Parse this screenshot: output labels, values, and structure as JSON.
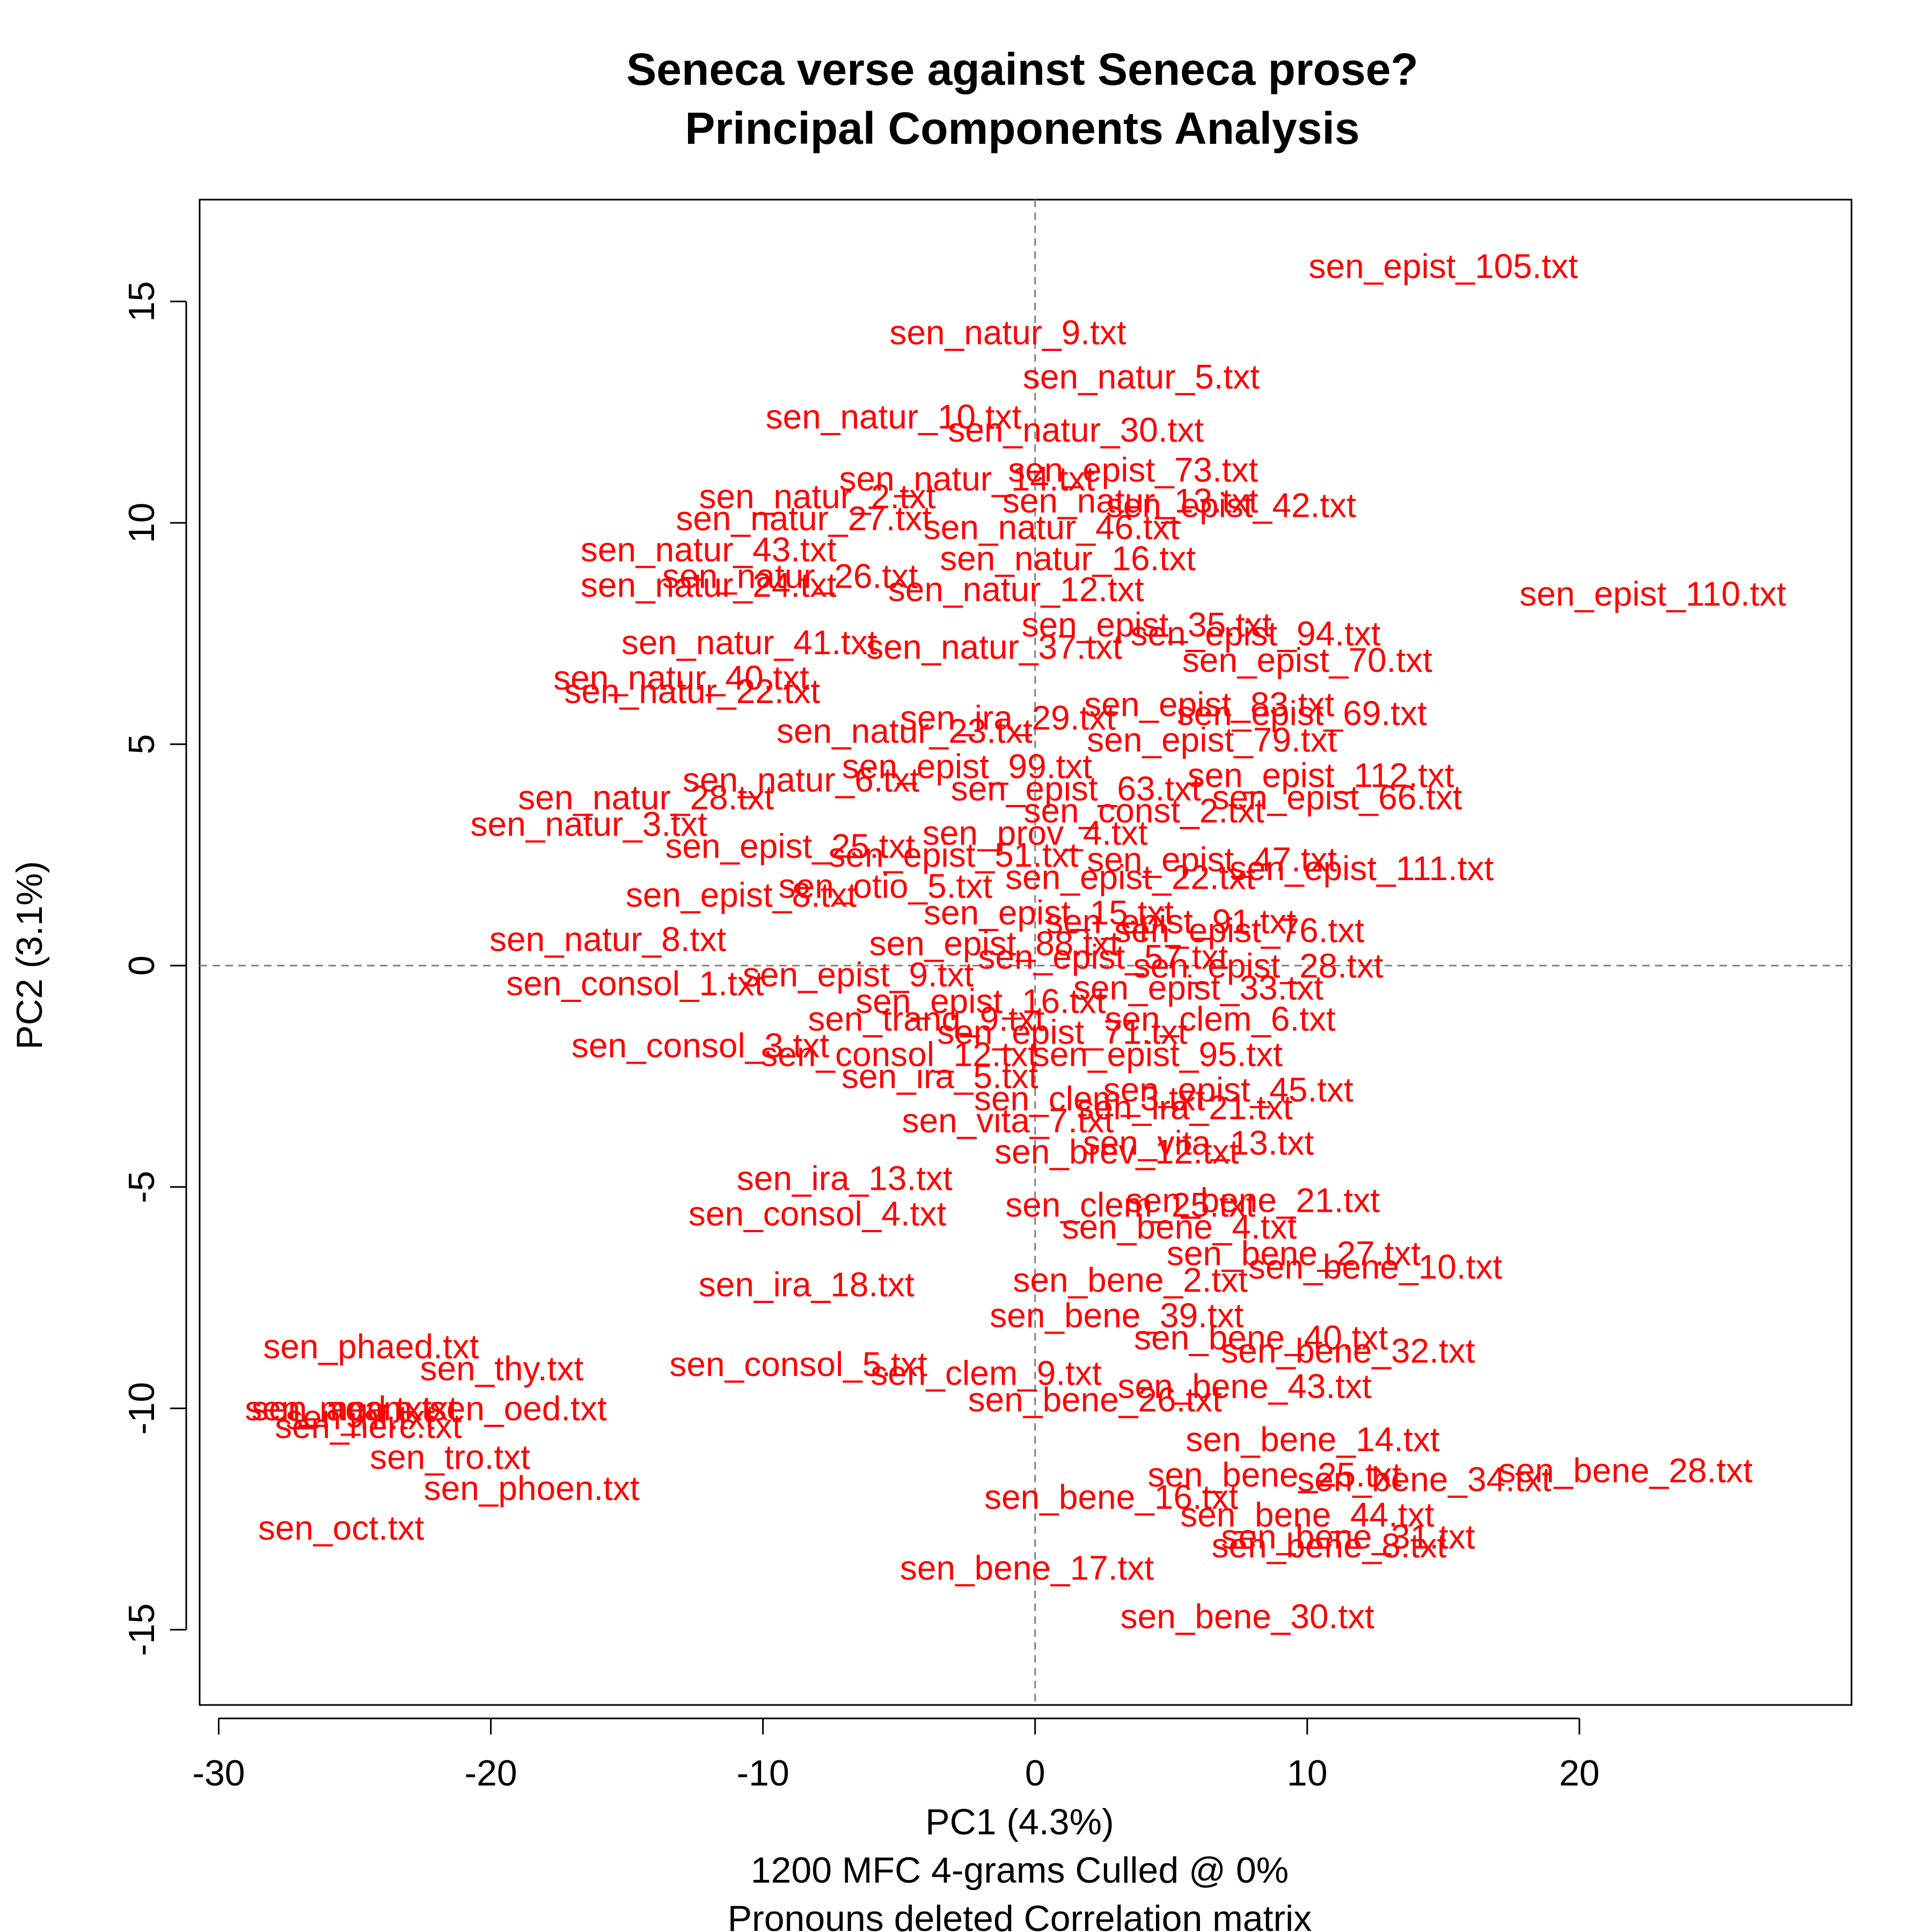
{
  "chart_data": {
    "type": "scatter",
    "title": "Seneca verse against Seneca prose?",
    "subtitle": "Principal Components Analysis",
    "xlabel": "PC1 (4.3%)",
    "ylabel": "PC2 (3.1%)",
    "caption_lines": [
      "1200 MFC 4-grams Culled @ 0%",
      "Pronouns deleted Correlation matrix"
    ],
    "xlim": [
      -30.7,
      30
    ],
    "ylim": [
      -16.7,
      17.3
    ],
    "xticks": [
      -30,
      -20,
      -10,
      0,
      10,
      20
    ],
    "yticks": [
      -15,
      -10,
      -5,
      0,
      5,
      10,
      15
    ],
    "reference_lines": {
      "x": 0,
      "y": 0
    },
    "label_color": "#ff0000",
    "points": [
      {
        "label": "sen_epist_105.txt",
        "x": 15.0,
        "y": 15.8
      },
      {
        "label": "sen_natur_9.txt",
        "x": -1.0,
        "y": 14.3
      },
      {
        "label": "sen_natur_5.txt",
        "x": 3.9,
        "y": 13.3
      },
      {
        "label": "sen_natur_10.txt",
        "x": -5.2,
        "y": 12.4
      },
      {
        "label": "sen_natur_30.txt",
        "x": 1.5,
        "y": 12.1
      },
      {
        "label": "sen_epist_73.txt",
        "x": 3.6,
        "y": 11.2
      },
      {
        "label": "sen_natur_14.txt",
        "x": -2.5,
        "y": 11.0
      },
      {
        "label": "sen_natur_2.txt",
        "x": -8.0,
        "y": 10.6
      },
      {
        "label": "sen_epist_42.txt",
        "x": 7.2,
        "y": 10.4
      },
      {
        "label": "sen_natur_13.txt",
        "x": 3.5,
        "y": 10.5
      },
      {
        "label": "sen_natur_46.txt",
        "x": 0.6,
        "y": 9.9
      },
      {
        "label": "sen_natur_27.txt",
        "x": -8.5,
        "y": 10.1
      },
      {
        "label": "sen_natur_43.txt",
        "x": -12.0,
        "y": 9.4
      },
      {
        "label": "sen_natur_16.txt",
        "x": 1.2,
        "y": 9.2
      },
      {
        "label": "sen_natur_26.txt",
        "x": -9.0,
        "y": 8.8
      },
      {
        "label": "sen_natur_24.txt",
        "x": -12.0,
        "y": 8.6
      },
      {
        "label": "sen_natur_12.txt",
        "x": -0.7,
        "y": 8.5
      },
      {
        "label": "sen_epist_110.txt",
        "x": 22.7,
        "y": 8.4
      },
      {
        "label": "sen_epist_35.txt",
        "x": 4.1,
        "y": 7.7
      },
      {
        "label": "sen_epist_94.txt",
        "x": 8.1,
        "y": 7.5
      },
      {
        "label": "sen_natur_37.txt",
        "x": -1.5,
        "y": 7.2
      },
      {
        "label": "sen_natur_41.txt",
        "x": -10.5,
        "y": 7.3
      },
      {
        "label": "sen_epist_70.txt",
        "x": 10.0,
        "y": 6.9
      },
      {
        "label": "sen_natur_40.txt",
        "x": -13.0,
        "y": 6.5
      },
      {
        "label": "sen_natur_22.txt",
        "x": -12.6,
        "y": 6.2
      },
      {
        "label": "sen_epist_83.txt",
        "x": 6.4,
        "y": 5.9
      },
      {
        "label": "sen_epist_69.txt",
        "x": 9.8,
        "y": 5.7
      },
      {
        "label": "sen_ira_29.txt",
        "x": -1.0,
        "y": 5.6
      },
      {
        "label": "sen_epist_79.txt",
        "x": 6.5,
        "y": 5.1
      },
      {
        "label": "sen_natur_23.txt",
        "x": -4.8,
        "y": 5.3
      },
      {
        "label": "sen_epist_112.txt",
        "x": 10.5,
        "y": 4.3
      },
      {
        "label": "sen_epist_66.txt",
        "x": 11.1,
        "y": 3.8
      },
      {
        "label": "sen_natur_28.txt",
        "x": -14.3,
        "y": 3.8
      },
      {
        "label": "sen_natur_3.txt",
        "x": -16.4,
        "y": 3.2
      },
      {
        "label": "sen_natur_6.txt",
        "x": -8.6,
        "y": 4.2
      },
      {
        "label": "sen_epist_111.txt",
        "x": 12.0,
        "y": 2.2
      },
      {
        "label": "sen_epist_25.txt",
        "x": -9.0,
        "y": 2.7
      },
      {
        "label": "sen_epist_8.txt",
        "x": -10.8,
        "y": 1.6
      },
      {
        "label": "sen_natur_8.txt",
        "x": -15.7,
        "y": 0.6
      },
      {
        "label": "sen_consol_1.txt",
        "x": -14.7,
        "y": -0.4
      },
      {
        "label": "sen_consol_3.txt",
        "x": -12.3,
        "y": -1.8
      },
      {
        "label": "sen_clem_6.txt",
        "x": 6.8,
        "y": -1.2
      },
      {
        "label": "sen_epist_28.txt",
        "x": 8.2,
        "y": 0.0
      },
      {
        "label": "sen_epist_45.txt",
        "x": 7.1,
        "y": -2.8
      },
      {
        "label": "sen_vita_13.txt",
        "x": 6.0,
        "y": -4.0
      },
      {
        "label": "sen_ira_13.txt",
        "x": -7.0,
        "y": -4.8
      },
      {
        "label": "sen_consol_4.txt",
        "x": -8.0,
        "y": -5.6
      },
      {
        "label": "sen_bene_21.txt",
        "x": 8.0,
        "y": -5.3
      },
      {
        "label": "sen_clem_25.txt",
        "x": 3.5,
        "y": -5.4
      },
      {
        "label": "sen_bene_4.txt",
        "x": 5.3,
        "y": -5.9
      },
      {
        "label": "sen_bene_27.txt",
        "x": 9.5,
        "y": -6.5
      },
      {
        "label": "sen_bene_10.txt",
        "x": 12.5,
        "y": -6.8
      },
      {
        "label": "sen_bene_2.txt",
        "x": 3.5,
        "y": -7.1
      },
      {
        "label": "sen_ira_18.txt",
        "x": -8.4,
        "y": -7.2
      },
      {
        "label": "sen_bene_39.txt",
        "x": 3.0,
        "y": -7.9
      },
      {
        "label": "sen_bene_40.txt",
        "x": 8.3,
        "y": -8.4
      },
      {
        "label": "sen_bene_32.txt",
        "x": 11.5,
        "y": -8.7
      },
      {
        "label": "sen_clem_9.txt",
        "x": -1.8,
        "y": -9.2
      },
      {
        "label": "sen_consol_5.txt",
        "x": -8.7,
        "y": -9.0
      },
      {
        "label": "sen_bene_43.txt",
        "x": 7.7,
        "y": -9.5
      },
      {
        "label": "sen_bene_26.txt",
        "x": 2.2,
        "y": -9.8
      },
      {
        "label": "sen_bene_14.txt",
        "x": 10.2,
        "y": -10.7
      },
      {
        "label": "sen_bene_28.txt",
        "x": 21.7,
        "y": -11.4
      },
      {
        "label": "sen_bene_34.txt",
        "x": 14.3,
        "y": -11.6
      },
      {
        "label": "sen_bene_25.txt",
        "x": 8.8,
        "y": -11.5
      },
      {
        "label": "sen_bene_16.txt",
        "x": 2.8,
        "y": -12.0
      },
      {
        "label": "sen_bene_44.txt",
        "x": 10.0,
        "y": -12.4
      },
      {
        "label": "sen_bene_31.txt",
        "x": 11.5,
        "y": -12.9
      },
      {
        "label": "sen_bene_8.txt",
        "x": 10.8,
        "y": -13.1
      },
      {
        "label": "sen_bene_17.txt",
        "x": -0.3,
        "y": -13.6
      },
      {
        "label": "sen_bene_30.txt",
        "x": 7.8,
        "y": -14.7
      },
      {
        "label": "sen_phaed.txt",
        "x": -24.4,
        "y": -8.6
      },
      {
        "label": "sen_thy.txt",
        "x": -19.6,
        "y": -9.1
      },
      {
        "label": "sen_agam.txt",
        "x": -25.0,
        "y": -10.0
      },
      {
        "label": "sen_hf.txt",
        "x": -24.8,
        "y": -10.2
      },
      {
        "label": "sen_oed.txt",
        "x": -19.0,
        "y": -10.0
      },
      {
        "label": "sen_med.txt",
        "x": -25.6,
        "y": -10.0
      },
      {
        "label": "sen_herc.txt",
        "x": -24.5,
        "y": -10.4
      },
      {
        "label": "sen_tro.txt",
        "x": -21.5,
        "y": -11.1
      },
      {
        "label": "sen_phoen.txt",
        "x": -18.5,
        "y": -11.8
      },
      {
        "label": "sen_oct.txt",
        "x": -25.5,
        "y": -12.7
      },
      {
        "label": "sen_epist_51.txt",
        "x": -3.0,
        "y": 2.5
      },
      {
        "label": "sen_epist_22.txt",
        "x": 3.5,
        "y": 2.0
      },
      {
        "label": "sen_epist_15.txt",
        "x": 0.5,
        "y": 1.2
      },
      {
        "label": "sen_epist_91.txt",
        "x": 5.0,
        "y": 1.0
      },
      {
        "label": "sen_epist_88.txt",
        "x": -1.5,
        "y": 0.5
      },
      {
        "label": "sen_epist_57.txt",
        "x": 2.5,
        "y": 0.2
      },
      {
        "label": "sen_epist_33.txt",
        "x": 6.0,
        "y": -0.5
      },
      {
        "label": "sen_epist_16.txt",
        "x": -2.0,
        "y": -0.8
      },
      {
        "label": "sen_epist_71.txt",
        "x": 1.0,
        "y": -1.5
      },
      {
        "label": "sen_epist_95.txt",
        "x": 4.5,
        "y": -2.0
      },
      {
        "label": "sen_ira_5.txt",
        "x": -3.5,
        "y": -2.5
      },
      {
        "label": "sen_clem_3.txt",
        "x": 2.0,
        "y": -3.0
      },
      {
        "label": "sen_vita_7.txt",
        "x": -1.0,
        "y": -3.5
      },
      {
        "label": "sen_brev_12.txt",
        "x": 3.0,
        "y": -4.2
      },
      {
        "label": "sen_tranq_9.txt",
        "x": -4.0,
        "y": -1.2
      },
      {
        "label": "sen_prov_4.txt",
        "x": 0.0,
        "y": 3.0
      },
      {
        "label": "sen_const_2.txt",
        "x": 4.0,
        "y": 3.5
      },
      {
        "label": "sen_otio_5.txt",
        "x": -5.5,
        "y": 1.8
      },
      {
        "label": "sen_epist_47.txt",
        "x": 6.5,
        "y": 2.4
      },
      {
        "label": "sen_epist_9.txt",
        "x": -6.5,
        "y": -0.2
      },
      {
        "label": "sen_epist_76.txt",
        "x": 7.5,
        "y": 0.8
      },
      {
        "label": "sen_epist_63.txt",
        "x": 1.5,
        "y": 4.0
      },
      {
        "label": "sen_epist_99.txt",
        "x": -2.5,
        "y": 4.5
      },
      {
        "label": "sen_ira_21.txt",
        "x": 5.5,
        "y": -3.2
      },
      {
        "label": "sen_consol_12.txt",
        "x": -5.0,
        "y": -2.0
      }
    ]
  }
}
